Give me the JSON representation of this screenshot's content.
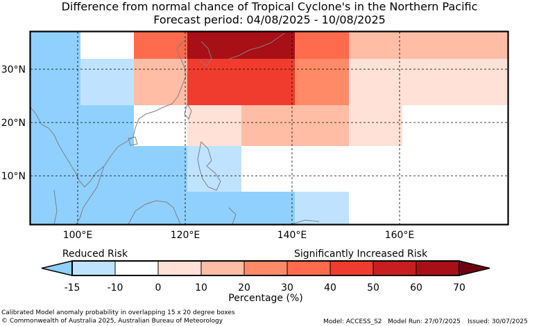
{
  "title_line1": "Difference from normal chance of Tropical Cyclone's in the Northern Pacific",
  "title_line2": "Forecast period: 04/08/2025 - 10/08/2025",
  "map": {
    "lon_ticks": [
      "100°E",
      "120°E",
      "140°E",
      "160°E"
    ],
    "lat_ticks": [
      "30°N",
      "20°N",
      "10°N"
    ],
    "colors": {
      "light_blue": "#bfe3ff",
      "blue": "#8fd0ff",
      "white": "#ffffff",
      "pale_red": "#ffe1d7",
      "light_red": "#ffbda5",
      "mid_red": "#ff8a68",
      "red": "#ff6b4c",
      "strong_red": "#f03c2e",
      "dark_red": "#a90f16",
      "coast": "#7f7f7f"
    }
  },
  "colorbar": {
    "reduced_label": "Reduced Risk",
    "increased_label": "Significantly Increased Risk",
    "tick_labels": [
      "-15",
      "-10",
      "0",
      "10",
      "20",
      "30",
      "40",
      "50",
      "60",
      "70"
    ],
    "title": "Percentage (%)",
    "colors": [
      "#8fd0ff",
      "#bfe3ff",
      "#ffffff",
      "#ffe1d7",
      "#ffbda5",
      "#ff8a68",
      "#ff6b4c",
      "#f03c2e",
      "#c81e20",
      "#a90f16",
      "#6e0010"
    ]
  },
  "footer": {
    "line1": "Calibrated Model anomaly probability in overlapping 15 x 20 degree boxes",
    "line2": "© Commonwealth of Australia 2025, Australian Bureau of Meteorology",
    "model": "Model: ACCESS_S2",
    "run": "Model Run: 27/07/2025",
    "issued": "Issued: 30/07/2025"
  }
}
